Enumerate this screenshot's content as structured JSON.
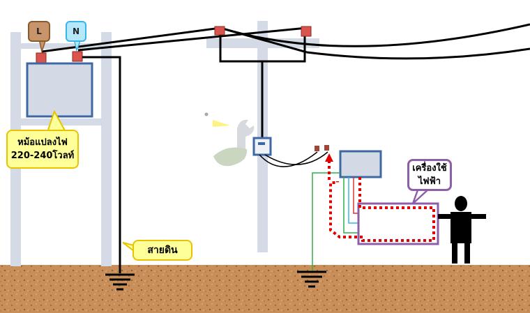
{
  "diagram": {
    "labels": {
      "phase": "L",
      "neutral": "N",
      "transformer_line1": "หม้อแปลงไฟ",
      "transformer_line2": "220-240โวลท์",
      "ground_wire": "สายดิน",
      "appliance_line1": "เครื่องใช้",
      "appliance_line2": "ไฟฟ้า"
    },
    "colors": {
      "soil": "#c98f5a",
      "pole": "#d4dbe6",
      "box_fill": "#d3dae6",
      "box_border": "#3d68a3",
      "terminal": "#d9544c",
      "leakage_path": "#e00000",
      "appliance_border": "#8e5fa8",
      "ground_wire_green": "#2bb04a",
      "callout_fill": "#ffff99",
      "callout_border": "#e8c400"
    },
    "icons": [
      "wrench-icon",
      "ground-symbol-icon",
      "person-silhouette-icon"
    ]
  }
}
